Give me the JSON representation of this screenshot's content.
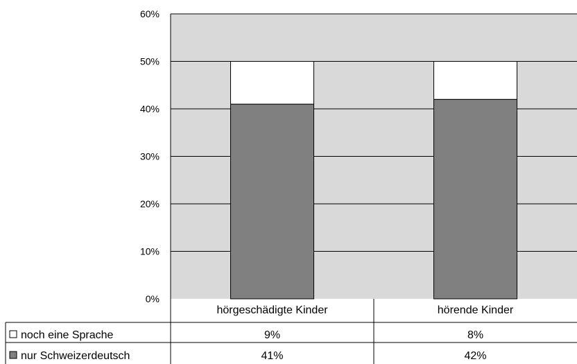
{
  "chart_data": {
    "type": "bar",
    "stacked": true,
    "categories": [
      "hörgeschädigte Kinder",
      "hörende Kinder"
    ],
    "series": [
      {
        "name": "nur Schweizerdeutsch",
        "values": [
          41,
          42
        ],
        "labels": [
          "41%",
          "42%"
        ],
        "color": "#808080"
      },
      {
        "name": "noch eine Sprache",
        "values": [
          9,
          8
        ],
        "labels": [
          "9%",
          "8%"
        ],
        "color": "#ffffff"
      }
    ],
    "table_rows": [
      {
        "marker": "□",
        "name": "noch eine Sprache",
        "values": [
          "9%",
          "8%"
        ]
      },
      {
        "marker": "■",
        "name": "nur Schweizerdeutsch",
        "values": [
          "41%",
          "42%"
        ]
      }
    ],
    "ylim": [
      0,
      60
    ],
    "yticks": [
      0,
      10,
      20,
      30,
      40,
      50,
      60
    ],
    "ytick_labels": [
      "0%",
      "10%",
      "20%",
      "30%",
      "40%",
      "50%",
      "60%"
    ],
    "grid": true,
    "plot_background": "#d9d9d9",
    "legend": "data-table",
    "title": "",
    "xlabel": "",
    "ylabel": ""
  }
}
